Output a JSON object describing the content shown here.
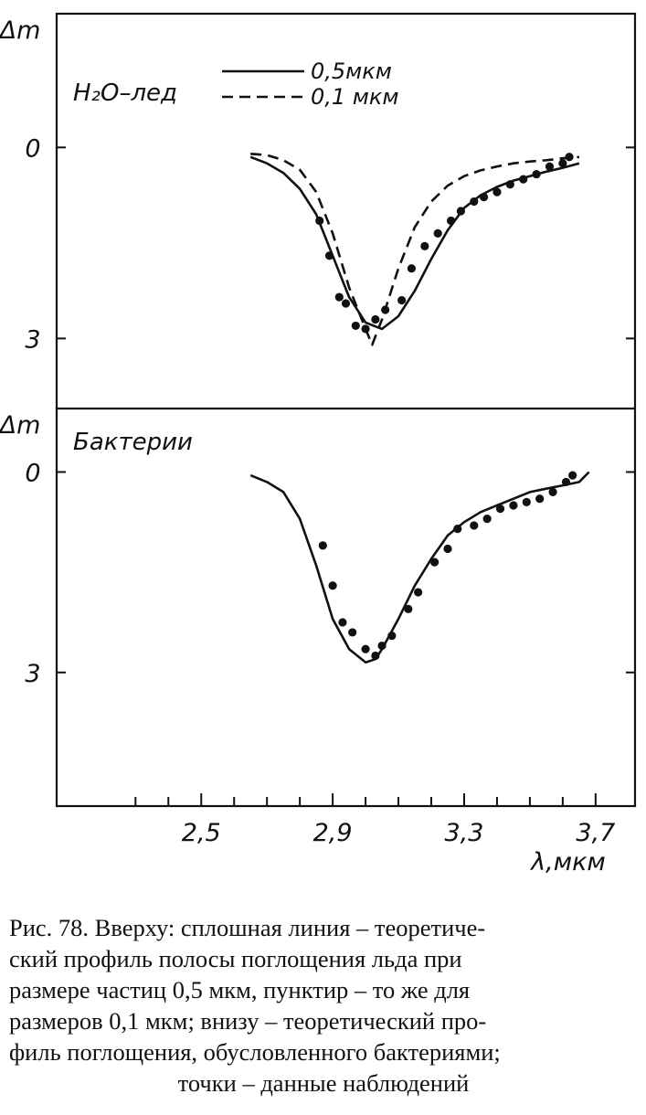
{
  "chart_data": [
    {
      "type": "line",
      "panel": "top",
      "ylabel": "Δm",
      "panel_label": "H₂O–лед",
      "y_ticks": [
        "0",
        "3"
      ],
      "y_tick_values": [
        0,
        3
      ],
      "ylim": [
        -2.1,
        4.1
      ],
      "y_inverted": true,
      "xlim": [
        2.06,
        3.82
      ],
      "grid": false,
      "legend_placement": "top-center",
      "series": [
        {
          "name": "0,5мкм",
          "style": "solid",
          "x": [
            2.65,
            2.7,
            2.75,
            2.8,
            2.85,
            2.9,
            2.95,
            3.0,
            3.05,
            3.1,
            3.15,
            3.2,
            3.25,
            3.3,
            3.35,
            3.4,
            3.45,
            3.5,
            3.55,
            3.6,
            3.65
          ],
          "y": [
            0.15,
            0.25,
            0.4,
            0.65,
            1.05,
            1.7,
            2.35,
            2.75,
            2.85,
            2.65,
            2.25,
            1.75,
            1.3,
            0.95,
            0.75,
            0.62,
            0.52,
            0.45,
            0.38,
            0.32,
            0.25
          ]
        },
        {
          "name": "0,1 мкм",
          "style": "dashed",
          "x": [
            2.65,
            2.7,
            2.75,
            2.8,
            2.85,
            2.9,
            2.95,
            3.0,
            3.02,
            3.05,
            3.1,
            3.15,
            3.2,
            3.25,
            3.3,
            3.35,
            3.4,
            3.45,
            3.5,
            3.55,
            3.6,
            3.65
          ],
          "y": [
            0.1,
            0.12,
            0.2,
            0.35,
            0.7,
            1.35,
            2.2,
            2.85,
            3.1,
            2.7,
            1.9,
            1.25,
            0.85,
            0.6,
            0.45,
            0.36,
            0.3,
            0.25,
            0.22,
            0.2,
            0.17,
            0.15
          ]
        },
        {
          "name": "наблюдения",
          "style": "points",
          "x": [
            2.86,
            2.89,
            2.92,
            2.94,
            2.97,
            3.0,
            3.03,
            3.06,
            3.11,
            3.14,
            3.18,
            3.22,
            3.26,
            3.29,
            3.33,
            3.36,
            3.4,
            3.44,
            3.48,
            3.52,
            3.56,
            3.6,
            3.62
          ],
          "y": [
            1.15,
            1.7,
            2.35,
            2.45,
            2.8,
            2.85,
            2.7,
            2.55,
            2.4,
            1.9,
            1.55,
            1.35,
            1.15,
            1.0,
            0.85,
            0.78,
            0.7,
            0.58,
            0.5,
            0.42,
            0.3,
            0.25,
            0.15
          ]
        }
      ]
    },
    {
      "type": "line",
      "panel": "bottom",
      "ylabel": "Δm",
      "panel_label": "Бактерии",
      "y_ticks": [
        "0",
        "3"
      ],
      "y_tick_values": [
        0,
        3
      ],
      "ylim": [
        -0.95,
        5.0
      ],
      "y_inverted": true,
      "xlabel": "λ,мкм",
      "x_ticks": [
        "2,5",
        "2,9",
        "3,3",
        "3,7"
      ],
      "x_tick_values": [
        2.5,
        2.9,
        3.3,
        3.7
      ],
      "x_minor_step": 0.1,
      "xlim": [
        2.06,
        3.82
      ],
      "grid": false,
      "series": [
        {
          "name": "теоретический профиль",
          "style": "solid",
          "x": [
            2.65,
            2.7,
            2.75,
            2.8,
            2.85,
            2.9,
            2.95,
            3.0,
            3.03,
            3.05,
            3.1,
            3.15,
            3.2,
            3.25,
            3.3,
            3.35,
            3.4,
            3.45,
            3.5,
            3.55,
            3.6,
            3.65,
            3.68
          ],
          "y": [
            0.05,
            0.15,
            0.3,
            0.7,
            1.4,
            2.2,
            2.65,
            2.85,
            2.8,
            2.65,
            2.2,
            1.7,
            1.3,
            0.95,
            0.75,
            0.6,
            0.5,
            0.4,
            0.3,
            0.25,
            0.2,
            0.15,
            0.0
          ]
        },
        {
          "name": "наблюдения",
          "style": "points",
          "x": [
            2.87,
            2.9,
            2.93,
            2.96,
            3.0,
            3.03,
            3.05,
            3.08,
            3.13,
            3.16,
            3.21,
            3.25,
            3.28,
            3.33,
            3.37,
            3.41,
            3.45,
            3.49,
            3.53,
            3.57,
            3.61,
            3.63
          ],
          "y": [
            1.1,
            1.7,
            2.25,
            2.4,
            2.65,
            2.75,
            2.6,
            2.45,
            2.05,
            1.8,
            1.35,
            1.15,
            0.85,
            0.8,
            0.7,
            0.55,
            0.5,
            0.45,
            0.4,
            0.3,
            0.15,
            0.05
          ]
        }
      ]
    }
  ],
  "caption": {
    "line1": "Рис. 78. Вверху: сплошная линия – теоретиче-",
    "line2": "ский профиль полосы поглощения льда при",
    "line3": "размере частиц 0,5 мкм, пунктир – то же для",
    "line4": "размеров 0,1 мкм; внизу – теоретический про-",
    "line5": "филь поглощения, обусловленного бактериями;",
    "line6": "точки – данные наблюдений"
  }
}
